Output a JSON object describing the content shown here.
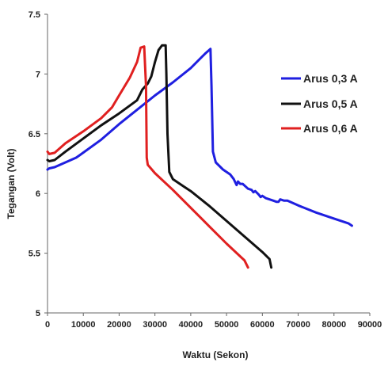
{
  "chart_data": {
    "type": "line",
    "xlabel": "Waktu (Sekon)",
    "ylabel": "Tegangan (Volt)",
    "xlim": [
      0,
      90000
    ],
    "ylim": [
      5,
      7.5
    ],
    "x_ticks": [
      0,
      10000,
      20000,
      30000,
      40000,
      50000,
      60000,
      70000,
      80000,
      90000
    ],
    "y_ticks": [
      5,
      5.5,
      6,
      6.5,
      7,
      7.5
    ],
    "y_tick_labels": [
      "5",
      "5.5",
      "6",
      "6.5",
      "7",
      "7.5"
    ],
    "grid": false,
    "legend": "right",
    "series": [
      {
        "name": "Arus 0,3 A",
        "color": "#1f1fe0",
        "x": [
          0,
          500,
          2000,
          5000,
          8000,
          9000,
          15000,
          20000,
          25000,
          30000,
          35000,
          40000,
          44000,
          45500,
          45800,
          46200,
          47000,
          49000,
          51000,
          52000,
          52800,
          53200,
          53800,
          54500,
          56000,
          57000,
          57500,
          58000,
          59000,
          59500,
          60000,
          61000,
          62000,
          63000,
          64000,
          64500,
          65000,
          66000,
          67000,
          70000,
          75000,
          80000,
          84000,
          85000
        ],
        "y": [
          6.2,
          6.21,
          6.22,
          6.26,
          6.3,
          6.32,
          6.45,
          6.58,
          6.7,
          6.82,
          6.93,
          7.05,
          7.17,
          7.21,
          6.9,
          6.35,
          6.26,
          6.2,
          6.16,
          6.12,
          6.07,
          6.1,
          6.08,
          6.08,
          6.04,
          6.03,
          6.01,
          6.02,
          5.99,
          5.97,
          5.98,
          5.96,
          5.95,
          5.94,
          5.93,
          5.93,
          5.95,
          5.94,
          5.94,
          5.9,
          5.84,
          5.79,
          5.75,
          5.73
        ]
      },
      {
        "name": "Arus 0,5 A",
        "color": "#111111",
        "x": [
          0,
          500,
          2000,
          5000,
          10000,
          15000,
          20000,
          25000,
          26500,
          28000,
          29000,
          30000,
          31000,
          32000,
          33000,
          33200,
          33500,
          34000,
          35000,
          38000,
          40000,
          45000,
          50000,
          55000,
          60000,
          62000,
          62500
        ],
        "y": [
          6.28,
          6.27,
          6.28,
          6.35,
          6.46,
          6.57,
          6.67,
          6.78,
          6.87,
          6.92,
          6.98,
          7.1,
          7.2,
          7.24,
          7.24,
          7.0,
          6.5,
          6.18,
          6.12,
          6.06,
          6.02,
          5.9,
          5.77,
          5.64,
          5.51,
          5.45,
          5.38
        ]
      },
      {
        "name": "Arus 0,6 A",
        "color": "#e02020",
        "x": [
          0,
          500,
          2000,
          5000,
          10000,
          15000,
          18000,
          20000,
          23000,
          25000,
          26000,
          27000,
          27500,
          27700,
          28000,
          30000,
          35000,
          40000,
          45000,
          50000,
          55000,
          56000
        ],
        "y": [
          6.35,
          6.33,
          6.34,
          6.42,
          6.52,
          6.63,
          6.72,
          6.82,
          6.97,
          7.1,
          7.22,
          7.23,
          6.9,
          6.3,
          6.24,
          6.17,
          6.03,
          5.88,
          5.73,
          5.58,
          5.44,
          5.38
        ]
      }
    ]
  }
}
